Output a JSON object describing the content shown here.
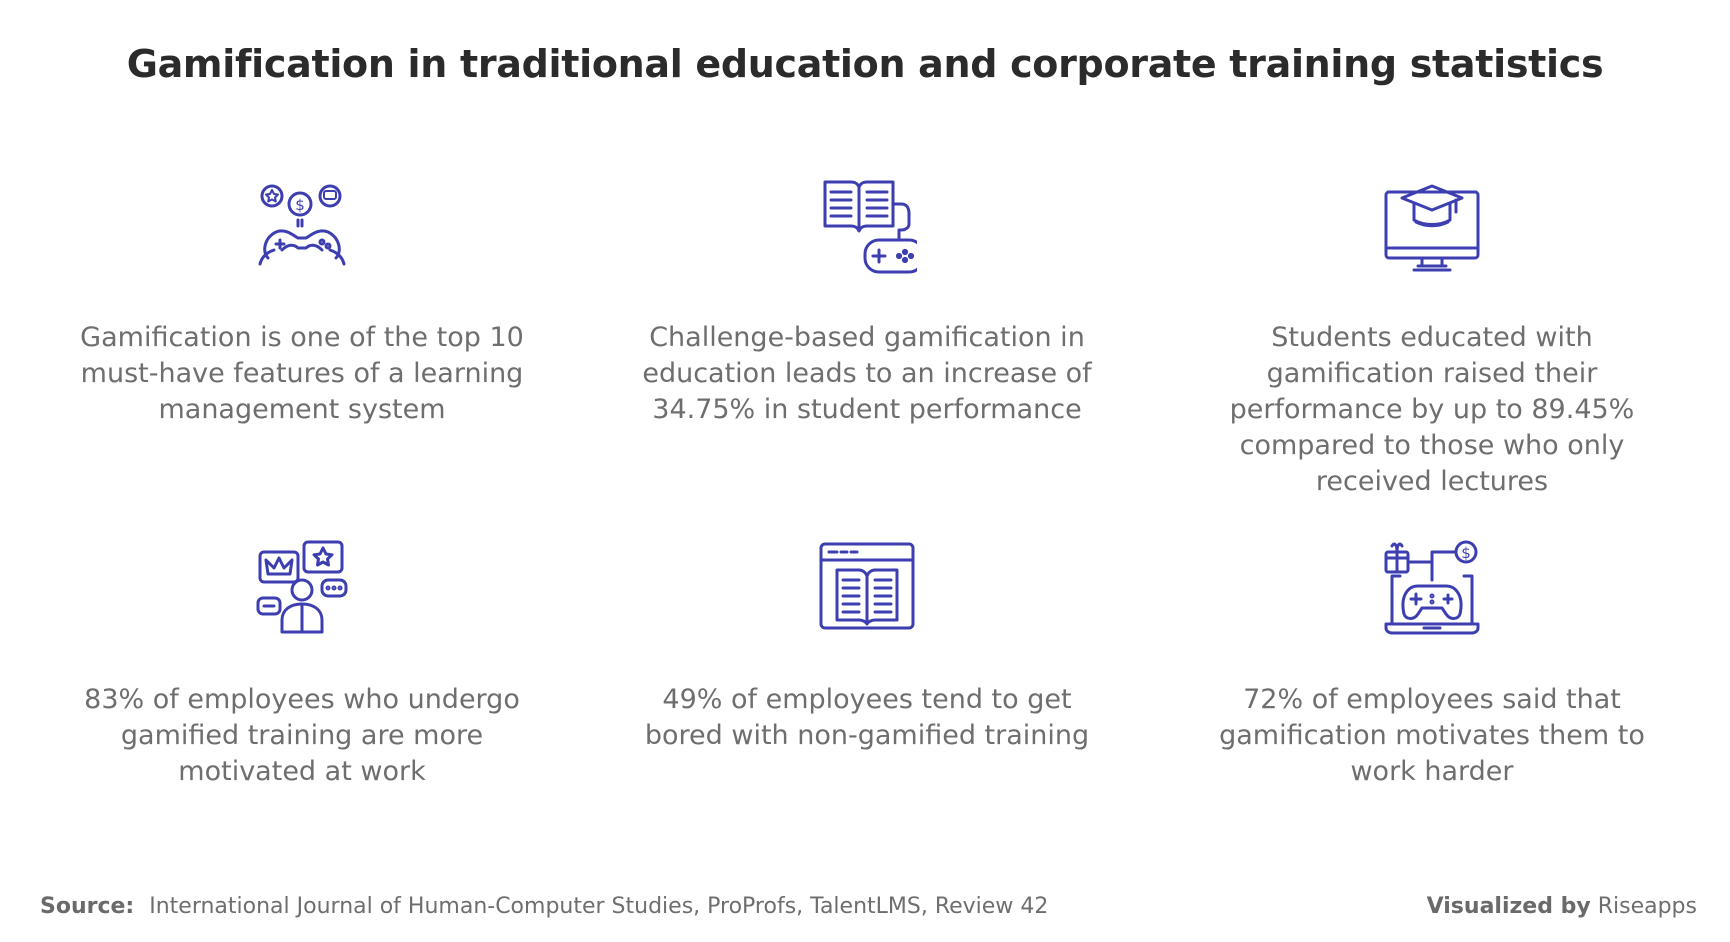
{
  "title": "Gamification in traditional education and corporate training statistics",
  "colors": {
    "icon": "#3d3fb0",
    "text": "#6e6e6e",
    "title": "#2b2b2b"
  },
  "cards": [
    {
      "icon": "gamepad-coins-icon",
      "text": "Gamification is one of the top 10 must-have features of a learning management system"
    },
    {
      "icon": "book-gamepad-icon",
      "text": "Challenge-based gamification in education leads to an increase of 34.75% in student performance"
    },
    {
      "icon": "graduation-monitor-icon",
      "text": "Students educated with gamification raised their performance by up to 89.45% compared to those who only received lectures"
    },
    {
      "icon": "employee-rewards-icon",
      "text": "83% of employees who undergo gamified training are more motivated at work"
    },
    {
      "icon": "browser-book-icon",
      "text": "49% of employees tend to get bored with non-gamified training"
    },
    {
      "icon": "laptop-gamepad-icon",
      "text": "72% of employees said that gamification motivates them to work harder"
    }
  ],
  "footer": {
    "source_label": "Source:",
    "source_text": "International Journal of Human-Computer Studies, ProProfs, TalentLMS, Review 42",
    "visualized_label": "Visualized by",
    "visualized_brand": "Riseapps"
  }
}
